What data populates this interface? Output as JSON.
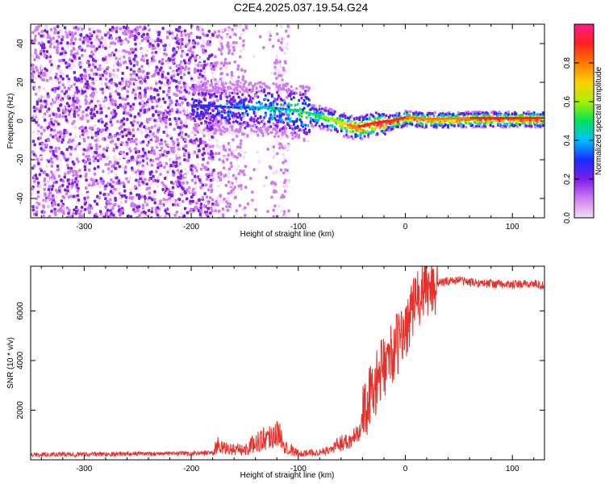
{
  "chart_data": [
    {
      "type": "heatmap",
      "title": "C2E4.2025.037.19.54.G24",
      "xlabel": "Height of straight line (km)",
      "ylabel": "Frequency (Hz)",
      "xlim": [
        -350,
        130
      ],
      "ylim": [
        -50,
        50
      ],
      "x_ticks": [
        -300,
        -200,
        -100,
        0,
        100
      ],
      "y_ticks": [
        -40,
        -20,
        0,
        20,
        40
      ],
      "colorbar": {
        "label": "Normalized spectral amplitude",
        "range": [
          0,
          1
        ],
        "ticks": [
          0.0,
          0.2,
          0.4,
          0.6,
          0.8
        ],
        "colors": [
          "#f3ddf9",
          "#cf7cf2",
          "#7a1ee8",
          "#1a2cff",
          "#00bfff",
          "#00e35a",
          "#a8f000",
          "#ffd000",
          "#ff7a00",
          "#ff1f1f",
          "#ff1a8c"
        ]
      },
      "ridge": {
        "description_points": [
          {
            "x": -190,
            "freq": 8,
            "amp": 0.25
          },
          {
            "x": -160,
            "freq": 7,
            "amp": 0.3
          },
          {
            "x": -130,
            "freq": 7,
            "amp": 0.35
          },
          {
            "x": -110,
            "freq": 6,
            "amp": 0.4
          },
          {
            "x": -90,
            "freq": 4,
            "amp": 0.5
          },
          {
            "x": -70,
            "freq": 1,
            "amp": 0.6
          },
          {
            "x": -55,
            "freq": -2,
            "amp": 0.75
          },
          {
            "x": -45,
            "freq": -3,
            "amp": 0.85
          },
          {
            "x": -30,
            "freq": -1,
            "amp": 0.9
          },
          {
            "x": -15,
            "freq": 0,
            "amp": 0.9
          },
          {
            "x": 0,
            "freq": 2,
            "amp": 0.85
          },
          {
            "x": 20,
            "freq": 1,
            "amp": 0.8
          },
          {
            "x": 60,
            "freq": 1.5,
            "amp": 0.85
          },
          {
            "x": 100,
            "freq": 1.5,
            "amp": 0.9
          },
          {
            "x": 130,
            "freq": 1.5,
            "amp": 0.85
          }
        ]
      },
      "grid": false
    },
    {
      "type": "line",
      "xlabel": "Height of straight line (km)",
      "ylabel": "SNR (10 * v/v)",
      "xlim": [
        -350,
        130
      ],
      "ylim": [
        0,
        7800
      ],
      "x_ticks": [
        -300,
        -200,
        -100,
        0,
        100
      ],
      "y_ticks": [
        2000,
        4000,
        6000
      ],
      "color": "#e8302a",
      "series": [
        {
          "x": [
            -350,
            -300,
            -250,
            -200,
            -180,
            -175,
            -170,
            -150,
            -140,
            -130,
            -120,
            -110,
            -100,
            -80,
            -70,
            -60,
            -50,
            -40,
            -35,
            -30,
            -25,
            -20,
            -15,
            -10,
            -5,
            0,
            5,
            10,
            15,
            20,
            25,
            30,
            40,
            50,
            60,
            80,
            100,
            120,
            130
          ],
          "y": [
            200,
            220,
            250,
            250,
            300,
            600,
            450,
            400,
            700,
            900,
            1100,
            500,
            250,
            300,
            400,
            700,
            800,
            1800,
            2300,
            2800,
            3300,
            3800,
            4100,
            4500,
            4800,
            5200,
            6000,
            6300,
            6700,
            6900,
            7000,
            7100,
            7200,
            7250,
            7150,
            7100,
            7050,
            7100,
            7000
          ]
        }
      ],
      "grid": false
    }
  ]
}
